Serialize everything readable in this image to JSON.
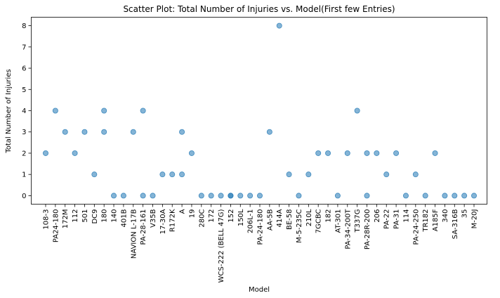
{
  "chart_data": {
    "type": "scatter",
    "title": "Scatter Plot: Total Number of Injuries vs. Model(First few Entries)",
    "xlabel": "Model",
    "ylabel": "Total Number of Injuries",
    "ylim": [
      -0.4,
      8.4
    ],
    "yticks": [
      0,
      1,
      2,
      3,
      4,
      5,
      6,
      7,
      8
    ],
    "grid": false,
    "categories": [
      "108-3",
      "PA24-180",
      "172M",
      "112",
      "501",
      "DC9",
      "180",
      "140",
      "401B",
      "NAVION L-17B",
      "PA-28-161",
      "V35B",
      "17-30A",
      "R172K",
      "A",
      "19",
      "280C",
      "172",
      "WCS-222 (BELL 47G)",
      "152",
      "150L",
      "206L-1",
      "PA-24-180",
      "AA-5B",
      "414A",
      "BE-58",
      "M-5-235C",
      "210L",
      "7GCBC",
      "182",
      "AT-301",
      "PA-34-200T",
      "T337G",
      "PA-28R-200",
      "206",
      "PA-22",
      "PA-31",
      "114",
      "PA-24-250",
      "TR182",
      "A185F",
      "340",
      "SA-316B",
      "35",
      "M-20J"
    ],
    "points": [
      {
        "x": "108-3",
        "y": 2
      },
      {
        "x": "PA24-180",
        "y": 4
      },
      {
        "x": "172M",
        "y": 3
      },
      {
        "x": "112",
        "y": 2
      },
      {
        "x": "501",
        "y": 3
      },
      {
        "x": "DC9",
        "y": 1
      },
      {
        "x": "180",
        "y": 4
      },
      {
        "x": "180",
        "y": 3
      },
      {
        "x": "140",
        "y": 0
      },
      {
        "x": "401B",
        "y": 0
      },
      {
        "x": "NAVION L-17B",
        "y": 3
      },
      {
        "x": "PA-28-161",
        "y": 4
      },
      {
        "x": "PA-28-161",
        "y": 0
      },
      {
        "x": "V35B",
        "y": 0
      },
      {
        "x": "17-30A",
        "y": 1
      },
      {
        "x": "R172K",
        "y": 1
      },
      {
        "x": "A",
        "y": 3
      },
      {
        "x": "A",
        "y": 1
      },
      {
        "x": "19",
        "y": 2
      },
      {
        "x": "280C",
        "y": 0
      },
      {
        "x": "172",
        "y": 0
      },
      {
        "x": "WCS-222 (BELL 47G)",
        "y": 0
      },
      {
        "x": "152",
        "y": 0
      },
      {
        "x": "152",
        "y": 0
      },
      {
        "x": "150L",
        "y": 0
      },
      {
        "x": "206L-1",
        "y": 0
      },
      {
        "x": "PA-24-180",
        "y": 0
      },
      {
        "x": "AA-5B",
        "y": 3
      },
      {
        "x": "414A",
        "y": 8
      },
      {
        "x": "BE-58",
        "y": 1
      },
      {
        "x": "M-5-235C",
        "y": 0
      },
      {
        "x": "210L",
        "y": 1
      },
      {
        "x": "7GCBC",
        "y": 2
      },
      {
        "x": "182",
        "y": 2
      },
      {
        "x": "AT-301",
        "y": 0
      },
      {
        "x": "PA-34-200T",
        "y": 2
      },
      {
        "x": "T337G",
        "y": 4
      },
      {
        "x": "PA-28R-200",
        "y": 2
      },
      {
        "x": "PA-28R-200",
        "y": 0
      },
      {
        "x": "206",
        "y": 2
      },
      {
        "x": "PA-22",
        "y": 1
      },
      {
        "x": "PA-31",
        "y": 2
      },
      {
        "x": "114",
        "y": 0
      },
      {
        "x": "PA-24-250",
        "y": 1
      },
      {
        "x": "TR182",
        "y": 0
      },
      {
        "x": "A185F",
        "y": 2
      },
      {
        "x": "340",
        "y": 0
      },
      {
        "x": "SA-316B",
        "y": 0
      },
      {
        "x": "35",
        "y": 0
      },
      {
        "x": "M-20J",
        "y": 0
      }
    ],
    "colors": {
      "marker_fill": "#1f77b4",
      "marker_opacity": 0.55,
      "axis": "#000000"
    }
  }
}
